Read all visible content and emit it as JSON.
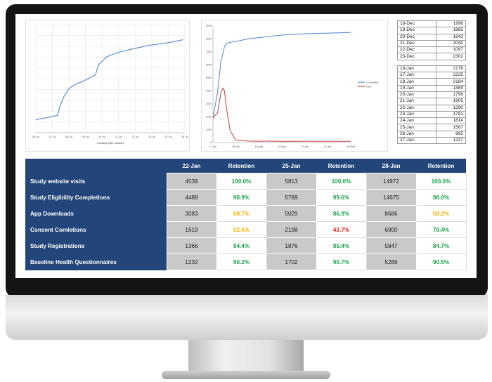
{
  "left_chart": {
    "x_labels": [
      "06-Jul",
      "07-Jul",
      "08-Jul",
      "09-Jul",
      "10-Jul",
      "11-Jul",
      "12-Jul",
      "13-Jul",
      "14-Jul",
      "15-Jul"
    ],
    "caption": "Tuesday 26th January"
  },
  "right_chart": {
    "y_labels": [
      "9000",
      "8000",
      "7000",
      "6000",
      "5000",
      "4000",
      "3000",
      "2000",
      "1000",
      "0"
    ],
    "x_labels": [
      "11-Jan",
      "25-Feb",
      "10-Mar",
      "24-Mar",
      "07-Apr",
      "21-Apr",
      "05-May"
    ],
    "legend": [
      {
        "name": "Cumulative",
        "color": "#5b8fd1"
      },
      {
        "name": "New",
        "color": "#c0504d"
      }
    ]
  },
  "chart_data": [
    {
      "type": "line",
      "title": "",
      "xlabel": "Tuesday 26th January",
      "x": [
        0,
        0.8,
        1.3,
        1.5,
        1.7,
        2,
        2.4,
        2.8,
        3.3,
        3.6,
        3.8,
        4.3,
        5,
        6,
        7,
        8,
        8.9
      ],
      "series": [
        {
          "values": [
            3,
            3.6,
            4,
            6.6,
            8.4,
            10.2,
            11.2,
            11.8,
            12.8,
            13.4,
            15.8,
            17.6,
            18.6,
            19.5,
            20.3,
            20.8,
            21.5
          ]
        }
      ],
      "ylim": [
        0,
        25
      ]
    },
    {
      "type": "line",
      "title": "",
      "xlabel": "",
      "ylabel": "",
      "x": [
        0,
        0.2,
        0.35,
        0.45,
        0.5,
        0.6,
        0.75,
        1,
        1.5,
        2,
        2.5,
        3,
        4,
        5,
        6
      ],
      "series": [
        {
          "name": "Cumulative",
          "values": [
            1900,
            3900,
            6300,
            7000,
            7400,
            7650,
            7750,
            7800,
            8000,
            8100,
            8200,
            8300,
            8400,
            8450,
            8500
          ]
        },
        {
          "name": "New",
          "values": [
            1900,
            2300,
            3900,
            4200,
            4000,
            2500,
            900,
            200,
            120,
            100,
            110,
            90,
            100,
            95,
            100
          ]
        }
      ],
      "ylim": [
        0,
        9000
      ],
      "legend": "right"
    }
  ],
  "date_table": {
    "group1": [
      {
        "date": "18-Dec",
        "value": "1996"
      },
      {
        "date": "19-Dec",
        "value": "1885"
      },
      {
        "date": "20-Dec",
        "value": "1942"
      },
      {
        "date": "21-Dec",
        "value": "2040"
      },
      {
        "date": "22-Dec",
        "value": "1097"
      },
      {
        "date": "23-Dec",
        "value": "2302"
      }
    ],
    "group2": [
      {
        "date": "16-Jan",
        "value": "2178"
      },
      {
        "date": "17-Jan",
        "value": "2225"
      },
      {
        "date": "18-Jan",
        "value": "2184"
      },
      {
        "date": "19-Jan",
        "value": "1489"
      },
      {
        "date": "20-Jan",
        "value": "1796"
      },
      {
        "date": "21-Jan",
        "value": "1905"
      },
      {
        "date": "22-Jan",
        "value": "1290"
      },
      {
        "date": "23-Jan",
        "value": "1781"
      },
      {
        "date": "24-Jan",
        "value": "1814"
      },
      {
        "date": "25-Jan",
        "value": "1567"
      },
      {
        "date": "26-Jan",
        "value": "895"
      },
      {
        "date": "27-Jan",
        "value": "1237"
      }
    ]
  },
  "stats_table": {
    "headers": [
      "22-Jan",
      "Retention",
      "25-Jan",
      "Retention",
      "28-Jan",
      "Retention"
    ],
    "rows": [
      {
        "label": "Study website visits",
        "cells": [
          "4539",
          "100.0%",
          "5813",
          "100.0%",
          "14972",
          "100.0%"
        ],
        "colors": [
          "green",
          "green",
          "green"
        ]
      },
      {
        "label": "Study Eligibility Completions",
        "cells": [
          "4489",
          "98.9%",
          "5789",
          "99.6%",
          "14675",
          "98.0%"
        ],
        "colors": [
          "green",
          "green",
          "green"
        ]
      },
      {
        "label": "App Downloads",
        "cells": [
          "3083",
          "68.7%",
          "5029",
          "86.9%",
          "8686",
          "59.2%"
        ],
        "colors": [
          "amber",
          "green",
          "amber"
        ]
      },
      {
        "label": "Consent Comletions",
        "cells": [
          "1619",
          "52.5%",
          "2198",
          "43.7%",
          "6900",
          "79.4%"
        ],
        "colors": [
          "amber",
          "red",
          "green"
        ]
      },
      {
        "label": "Study Registrations",
        "cells": [
          "1366",
          "84.4%",
          "1876",
          "85.4%",
          "5847",
          "84.7%"
        ],
        "colors": [
          "green",
          "green",
          "green"
        ]
      },
      {
        "label": "Baseline Health Questionnaires",
        "cells": [
          "1232",
          "90.2%",
          "1702",
          "90.7%",
          "5289",
          "90.5%"
        ],
        "colors": [
          "green",
          "green",
          "green"
        ]
      }
    ]
  }
}
